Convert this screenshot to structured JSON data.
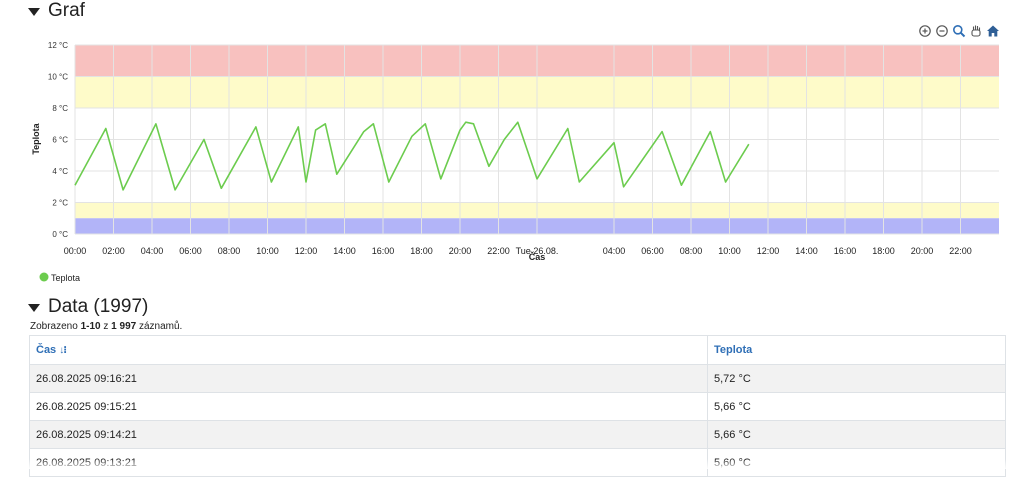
{
  "graph_section": {
    "title": "Graf"
  },
  "toolbar": {
    "icons": [
      "zoom-in-icon",
      "zoom-out-icon",
      "magnify-icon",
      "pan-hand-icon",
      "home-icon"
    ]
  },
  "chart_data": {
    "type": "line",
    "ylabel": "Teplota",
    "xlabel": "Čas",
    "y_unit": "°C",
    "ylim": [
      0,
      12
    ],
    "y_ticks": [
      "0 °C",
      "2 °C",
      "4 °C",
      "6 °C",
      "8 °C",
      "10 °C",
      "12 °C"
    ],
    "x_range_hours": [
      0,
      48
    ],
    "x_ticks": [
      {
        "h": 0,
        "label": "00:00"
      },
      {
        "h": 2,
        "label": "02:00"
      },
      {
        "h": 4,
        "label": "04:00"
      },
      {
        "h": 6,
        "label": "06:00"
      },
      {
        "h": 8,
        "label": "08:00"
      },
      {
        "h": 10,
        "label": "10:00"
      },
      {
        "h": 12,
        "label": "12:00"
      },
      {
        "h": 14,
        "label": "14:00"
      },
      {
        "h": 16,
        "label": "16:00"
      },
      {
        "h": 18,
        "label": "18:00"
      },
      {
        "h": 20,
        "label": "20:00"
      },
      {
        "h": 22,
        "label": "22:00"
      },
      {
        "h": 24,
        "label": "Tue 26.08."
      },
      {
        "h": 28,
        "label": "04:00"
      },
      {
        "h": 30,
        "label": "06:00"
      },
      {
        "h": 32,
        "label": "08:00"
      },
      {
        "h": 34,
        "label": "10:00"
      },
      {
        "h": 36,
        "label": "12:00"
      },
      {
        "h": 38,
        "label": "14:00"
      },
      {
        "h": 40,
        "label": "16:00"
      },
      {
        "h": 42,
        "label": "18:00"
      },
      {
        "h": 44,
        "label": "20:00"
      },
      {
        "h": 46,
        "label": "22:00"
      }
    ],
    "bands": [
      {
        "from": 10,
        "to": 12,
        "color": "#f8c1bf"
      },
      {
        "from": 8,
        "to": 10,
        "color": "#fefbc9"
      },
      {
        "from": 1,
        "to": 2,
        "color": "#fefbc9"
      },
      {
        "from": 0,
        "to": 1,
        "color": "#b2b4f8"
      }
    ],
    "legend": {
      "placement": "bottom-left"
    },
    "grid": true,
    "series": [
      {
        "name": "Teplota",
        "color": "#6ccc4e",
        "points": [
          [
            0.0,
            3.1
          ],
          [
            1.6,
            6.7
          ],
          [
            2.5,
            2.8
          ],
          [
            4.2,
            7.0
          ],
          [
            5.2,
            2.8
          ],
          [
            6.7,
            6.0
          ],
          [
            7.6,
            2.9
          ],
          [
            9.4,
            6.8
          ],
          [
            10.2,
            3.3
          ],
          [
            11.6,
            6.8
          ],
          [
            12.0,
            3.3
          ],
          [
            12.5,
            6.6
          ],
          [
            13.0,
            7.0
          ],
          [
            13.6,
            3.8
          ],
          [
            15.0,
            6.5
          ],
          [
            15.5,
            7.0
          ],
          [
            16.3,
            3.3
          ],
          [
            17.5,
            6.2
          ],
          [
            18.2,
            7.0
          ],
          [
            19.0,
            3.5
          ],
          [
            20.0,
            6.6
          ],
          [
            20.3,
            7.1
          ],
          [
            20.7,
            7.0
          ],
          [
            21.5,
            4.3
          ],
          [
            22.3,
            6.0
          ],
          [
            23.0,
            7.1
          ],
          [
            24.0,
            3.5
          ],
          [
            25.6,
            6.7
          ],
          [
            26.2,
            3.3
          ],
          [
            28.0,
            5.8
          ],
          [
            28.5,
            3.0
          ],
          [
            30.5,
            6.5
          ],
          [
            31.5,
            3.1
          ],
          [
            33.0,
            6.5
          ],
          [
            33.8,
            3.3
          ],
          [
            35.0,
            5.7
          ]
        ]
      }
    ]
  },
  "data_section": {
    "title": "Data (1997)",
    "summary_prefix": "Zobrazeno ",
    "summary_range": "1-10",
    "summary_mid": " z ",
    "summary_total": "1 997",
    "summary_suffix": " záznamů."
  },
  "table": {
    "columns": [
      "Čas",
      "Teplota"
    ],
    "sort_icon": "sort-desc-icon",
    "rows": [
      [
        "26.08.2025 09:16:21",
        "5,72 °C"
      ],
      [
        "26.08.2025 09:15:21",
        "5,66 °C"
      ],
      [
        "26.08.2025 09:14:21",
        "5,66 °C"
      ],
      [
        "26.08.2025 09:13:21",
        "5,60 °C"
      ]
    ]
  }
}
